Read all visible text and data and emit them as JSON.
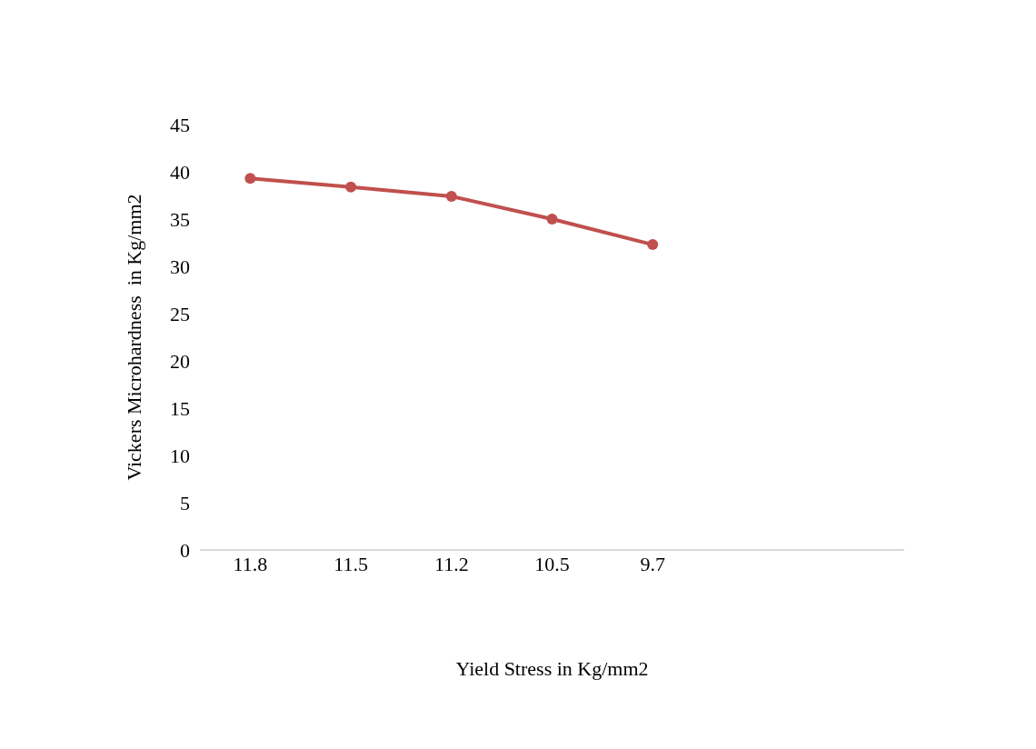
{
  "chart_data": {
    "type": "line",
    "xlabel": "Yield Stress in Kg/mm2",
    "ylabel": "Vickers Microhardness  in Kg/mm2",
    "categories": [
      "11.8",
      "11.5",
      "11.2",
      "10.5",
      "9.7",
      null,
      null
    ],
    "series": [
      {
        "color": "#c0504d",
        "values": [
          39.3,
          38.4,
          37.4,
          35.0,
          32.3,
          null,
          null
        ]
      }
    ],
    "ylim": [
      0,
      45
    ],
    "yticks": [
      0,
      5,
      10,
      15,
      20,
      25,
      30,
      35,
      40,
      45
    ],
    "legend": false,
    "marker": "circle",
    "line_style": "solid"
  }
}
